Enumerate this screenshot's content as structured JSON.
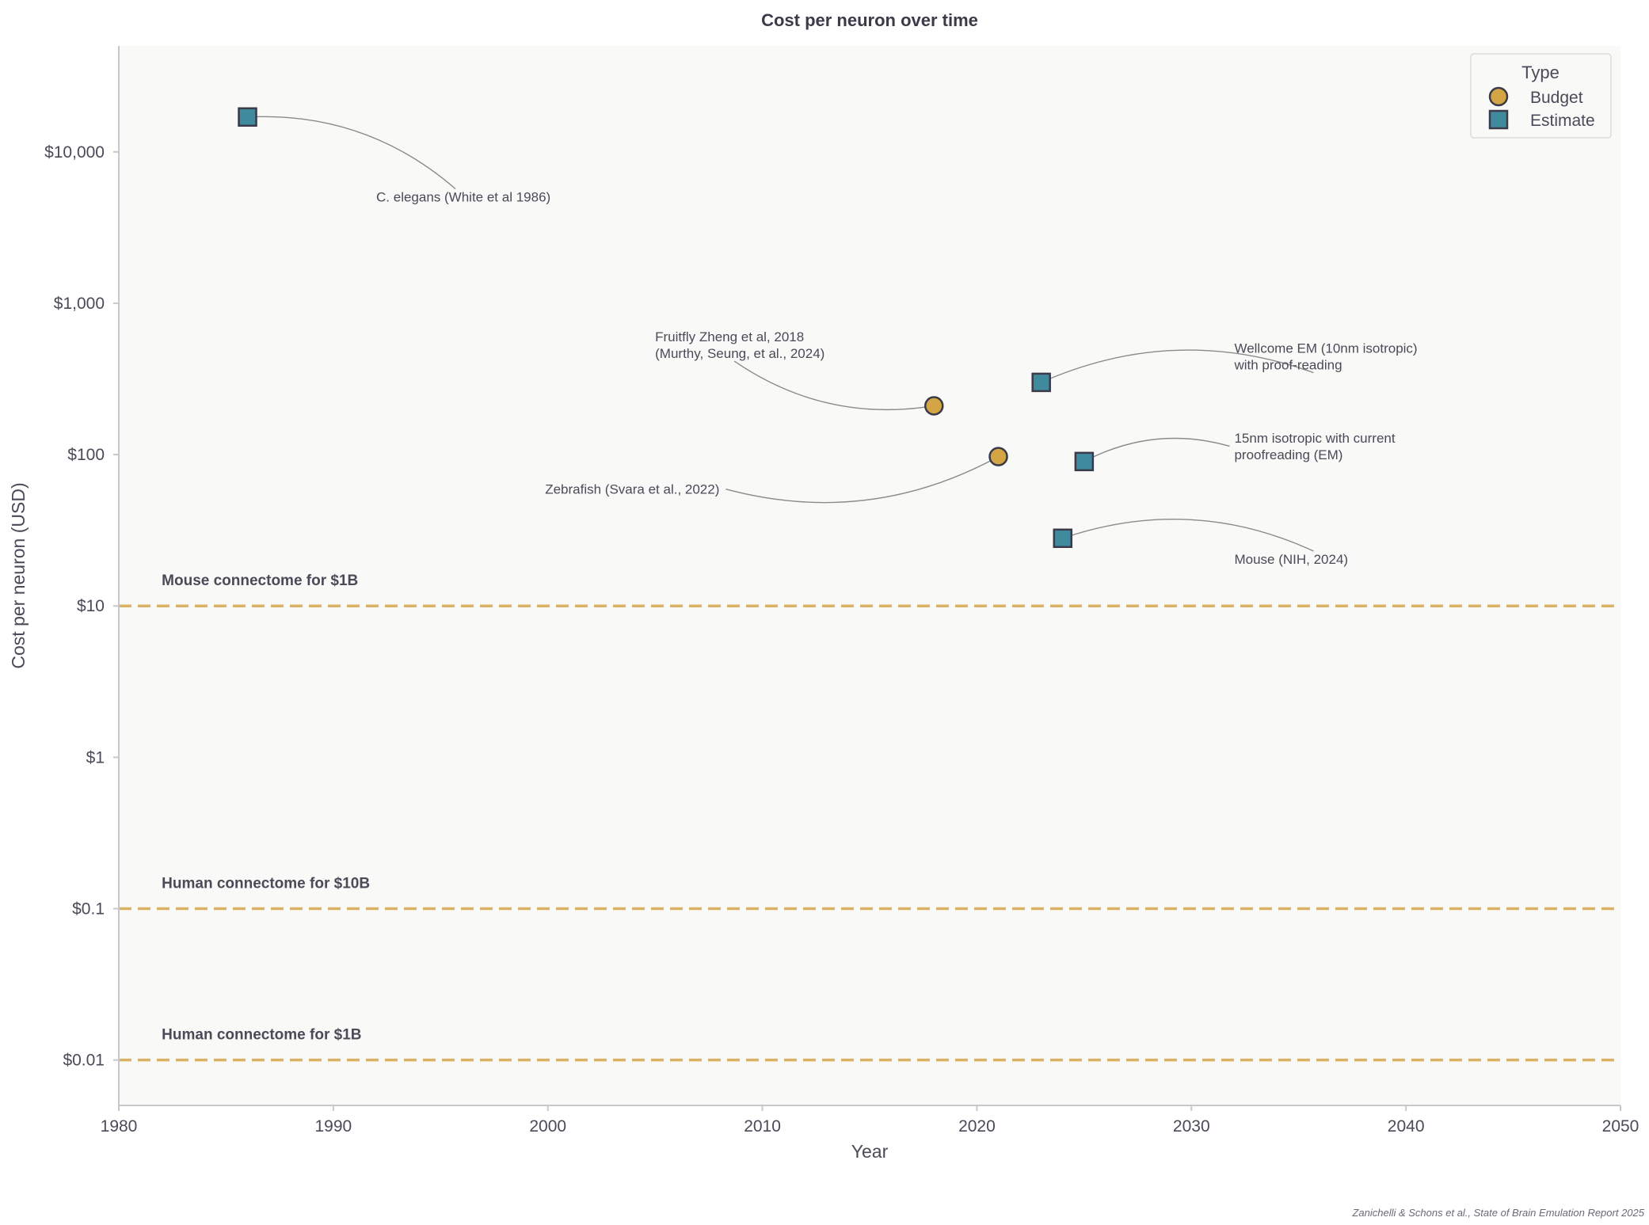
{
  "chart_data": {
    "type": "scatter",
    "title": "Cost per neuron over time",
    "xlabel": "Year",
    "ylabel": "Cost per neuron (USD)",
    "xlim": [
      1980,
      2050
    ],
    "ylim_log10": [
      -2.3,
      4.7
    ],
    "x_ticks": [
      1980,
      1990,
      2000,
      2010,
      2020,
      2030,
      2040,
      2050
    ],
    "y_ticks": [
      {
        "value": 0.01,
        "label": "$0.01"
      },
      {
        "value": 0.1,
        "label": "$0.1"
      },
      {
        "value": 1,
        "label": "$1"
      },
      {
        "value": 10,
        "label": "$10"
      },
      {
        "value": 100,
        "label": "$100"
      },
      {
        "value": 1000,
        "label": "$1,000"
      },
      {
        "value": 10000,
        "label": "$10,000"
      }
    ],
    "legend": {
      "title": "Type",
      "position": "top-right",
      "entries": [
        {
          "name": "Budget",
          "marker": "circle",
          "color": "#D4A545"
        },
        {
          "name": "Estimate",
          "marker": "square",
          "color": "#3F8A9C"
        }
      ]
    },
    "points": [
      {
        "year": 1986,
        "cost": 17000,
        "type": "Estimate",
        "label": [
          "C. elegans (White et al 1986)"
        ],
        "label_year": 1992,
        "label_cost": 4700,
        "anchor": "start"
      },
      {
        "year": 2018,
        "cost": 210,
        "type": "Budget",
        "label": [
          "Fruitfly Zheng et al, 2018",
          "(Murthy, Seung, et al., 2024)"
        ],
        "label_year": 2005,
        "label_cost": 560,
        "anchor": "start"
      },
      {
        "year": 2023,
        "cost": 300,
        "type": "Estimate",
        "label": [
          "Wellcome EM (10nm isotropic)",
          "with proof-reading"
        ],
        "label_year": 2032,
        "label_cost": 470,
        "anchor": "start"
      },
      {
        "year": 2021,
        "cost": 97,
        "type": "Budget",
        "label": [
          "Zebrafish (Svara et al., 2022)"
        ],
        "label_year": 2008,
        "label_cost": 55,
        "anchor": "end"
      },
      {
        "year": 2025,
        "cost": 90,
        "type": "Estimate",
        "label": [
          "15nm isotropic with current",
          "proofreading (EM)"
        ],
        "label_year": 2032,
        "label_cost": 120,
        "anchor": "start"
      },
      {
        "year": 2024,
        "cost": 28,
        "type": "Estimate",
        "label": [
          "Mouse (NIH, 2024)"
        ],
        "label_year": 2032,
        "label_cost": 19,
        "anchor": "start"
      }
    ],
    "reference_lines": [
      {
        "value": 10,
        "label": "Mouse connectome for $1B"
      },
      {
        "value": 0.1,
        "label": "Human connectome for $10B"
      },
      {
        "value": 0.01,
        "label": "Human connectome for $1B"
      }
    ],
    "colors": {
      "budget": "#D4A545",
      "estimate": "#3F8A9C",
      "reference": "#D9B264",
      "marker_edge": "#3a3a4a",
      "background": "#F9F9F7",
      "axis": "#c8c8c8"
    }
  },
  "credit": "Zanichelli & Schons et al., State of Brain Emulation Report 2025"
}
